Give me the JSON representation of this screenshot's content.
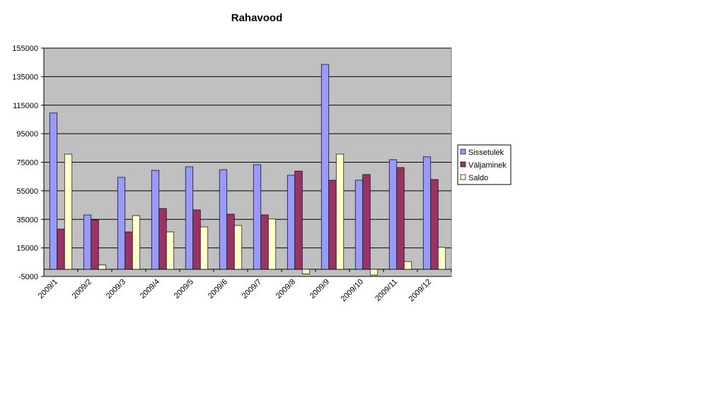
{
  "chart_data": {
    "type": "bar",
    "title": "Rahavood",
    "categories": [
      "2009/1",
      "2009/2",
      "2009/3",
      "2009/4",
      "2009/5",
      "2009/6",
      "2009/7",
      "2009/8",
      "2009/9",
      "2009/10",
      "2009/11",
      "2009/12"
    ],
    "series": [
      {
        "name": "Sissetulek",
        "color": "#9999ff",
        "values": [
          109500,
          38100,
          64400,
          69300,
          71800,
          69800,
          73300,
          65900,
          143600,
          62400,
          76800,
          78800
        ]
      },
      {
        "name": "Väljaminek",
        "color": "#993366",
        "values": [
          28200,
          34700,
          26200,
          42600,
          41600,
          38600,
          38100,
          68800,
          62400,
          66400,
          71300,
          62900
        ]
      },
      {
        "name": "Saldo",
        "color": "#ffffcc",
        "values": [
          80700,
          3000,
          37600,
          26200,
          29700,
          30700,
          35200,
          -3200,
          80700,
          -4000,
          5400,
          15400
        ]
      }
    ],
    "ylim": [
      -5000,
      155000
    ],
    "yticks": [
      -5000,
      15000,
      35000,
      55000,
      75000,
      95000,
      115000,
      135000,
      155000
    ],
    "grid": true,
    "plot_background": "#c0c0c0",
    "legend": "right"
  }
}
